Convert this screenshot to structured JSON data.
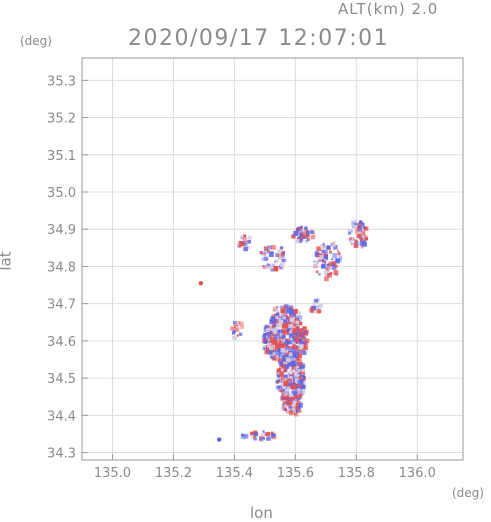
{
  "header": {
    "alt_label": "ALT(km)  2.0",
    "time_label": "2020/09/17 12:07:01"
  },
  "chart_data": {
    "type": "heatmap",
    "xlabel": "lon",
    "ylabel": "lat",
    "x_unit": "(deg)",
    "y_unit": "(deg)",
    "xlim": [
      134.9,
      136.15
    ],
    "ylim": [
      34.28,
      35.36
    ],
    "x_ticks": [
      135.0,
      135.2,
      135.4,
      135.6,
      135.8,
      136.0
    ],
    "x_tick_labels": [
      "135.0",
      "135.2",
      "135.4",
      "135.6",
      "135.8",
      "136.0"
    ],
    "y_ticks": [
      34.3,
      34.4,
      34.5,
      34.6,
      34.7,
      34.8,
      34.9,
      35.0,
      35.1,
      35.2,
      35.3
    ],
    "y_tick_labels": [
      "34.3",
      "34.4",
      "34.5",
      "34.6",
      "34.7",
      "34.8",
      "34.9",
      "35.0",
      "35.1",
      "35.2",
      "35.3"
    ],
    "grid": true,
    "colors": {
      "positive": "#e8504f",
      "negative": "#5a66e8",
      "axis": "#999999",
      "grid": "#dcdcdc"
    },
    "clusters": [
      {
        "lon": 135.56,
        "lat": 34.61,
        "rlon": 0.075,
        "rlat": 0.065,
        "n": 420
      },
      {
        "lon": 135.58,
        "lat": 34.5,
        "rlon": 0.045,
        "rlat": 0.07,
        "n": 220
      },
      {
        "lon": 135.56,
        "lat": 34.67,
        "rlon": 0.05,
        "rlat": 0.03,
        "n": 90
      },
      {
        "lon": 135.58,
        "lat": 34.43,
        "rlon": 0.03,
        "rlat": 0.025,
        "n": 50
      },
      {
        "lon": 135.62,
        "lat": 34.89,
        "rlon": 0.04,
        "rlat": 0.02,
        "n": 50
      },
      {
        "lon": 135.8,
        "lat": 34.89,
        "rlon": 0.03,
        "rlat": 0.04,
        "n": 60
      },
      {
        "lon": 135.7,
        "lat": 34.82,
        "rlon": 0.045,
        "rlat": 0.05,
        "n": 80
      },
      {
        "lon": 135.52,
        "lat": 34.83,
        "rlon": 0.04,
        "rlat": 0.04,
        "n": 45
      },
      {
        "lon": 135.43,
        "lat": 34.87,
        "rlon": 0.025,
        "rlat": 0.02,
        "n": 22
      },
      {
        "lon": 135.48,
        "lat": 34.35,
        "rlon": 0.06,
        "rlat": 0.01,
        "n": 30
      },
      {
        "lon": 135.4,
        "lat": 34.64,
        "rlon": 0.02,
        "rlat": 0.03,
        "n": 15
      },
      {
        "lon": 135.66,
        "lat": 34.7,
        "rlon": 0.02,
        "rlat": 0.02,
        "n": 14
      }
    ],
    "isolated_points": [
      {
        "lon": 135.29,
        "lat": 34.755,
        "value": 1
      },
      {
        "lon": 135.35,
        "lat": 34.335,
        "value": -1
      }
    ]
  }
}
